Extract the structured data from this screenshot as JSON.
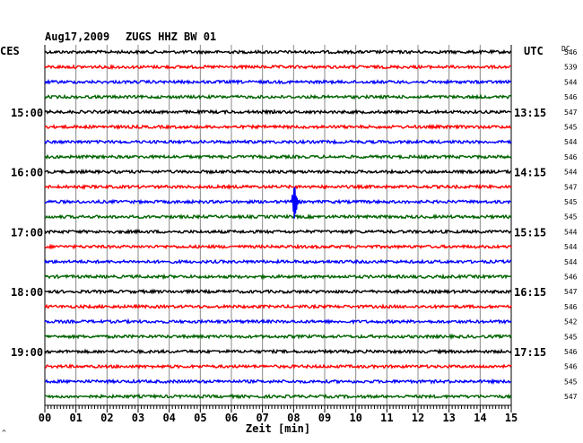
{
  "header": {
    "date": "Aug17,2009",
    "station": "ZUGS HHZ BW 01",
    "left_tz": "CES",
    "right_tz": "UTC",
    "dc_label": "DC"
  },
  "x_axis": {
    "label": "Zeit [min]",
    "ticks": [
      "00",
      "01",
      "02",
      "03",
      "04",
      "05",
      "06",
      "07",
      "08",
      "09",
      "10",
      "11",
      "12",
      "13",
      "14",
      "15"
    ]
  },
  "colors": {
    "background": "#ffffff",
    "grid": "#888888",
    "trace_cycle": [
      "#000000",
      "#ff0000",
      "#0000ff",
      "#006400"
    ]
  },
  "time_labels": [
    {
      "row": 4,
      "left": "15:00",
      "right": "13:15"
    },
    {
      "row": 8,
      "left": "16:00",
      "right": "14:15"
    },
    {
      "row": 12,
      "left": "17:00",
      "right": "15:15"
    },
    {
      "row": 16,
      "left": "18:00",
      "right": "16:15"
    },
    {
      "row": 20,
      "left": "19:00",
      "right": "17:15"
    }
  ],
  "chart_data": {
    "type": "line",
    "title": "Aug17,2009 ZUGS HHZ BW 01",
    "xlabel": "Zeit [min]",
    "xlim": [
      0,
      15
    ],
    "rows": 24,
    "dc_offsets": [
      546,
      539,
      544,
      546,
      547,
      545,
      544,
      546,
      544,
      547,
      545,
      545,
      544,
      544,
      544,
      546,
      547,
      546,
      542,
      545,
      546,
      546,
      545,
      547
    ],
    "events": [
      {
        "row": 10,
        "minute": 8.0,
        "amplitude": "large",
        "color": "#0000ff"
      }
    ],
    "left_margin_mark": "^"
  }
}
